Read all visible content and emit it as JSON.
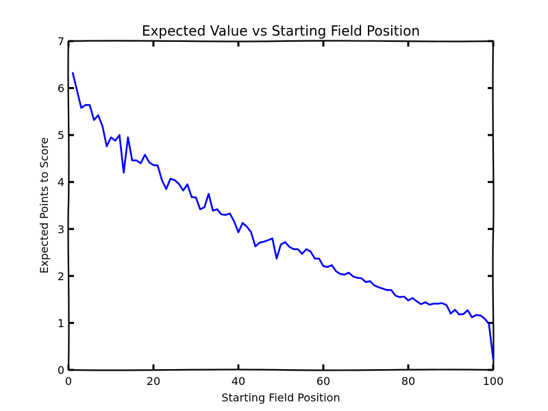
{
  "chart_data": {
    "type": "line",
    "title": "Expected Value vs Starting Field Position",
    "xlabel": "Starting Field Position",
    "ylabel": "Expected Points to Score",
    "xlim": [
      0,
      100
    ],
    "ylim": [
      0,
      7
    ],
    "xticks": [
      0,
      20,
      40,
      60,
      80,
      100
    ],
    "yticks": [
      0,
      1,
      2,
      3,
      4,
      5,
      6,
      7
    ],
    "xtick_labels": [
      "0",
      "20",
      "40",
      "60",
      "80",
      "100"
    ],
    "ytick_labels": [
      "0",
      "1",
      "2",
      "3",
      "4",
      "5",
      "6",
      "7"
    ],
    "grid": false,
    "color": "#0000ff",
    "series": [
      {
        "x": [
          1,
          2,
          3,
          4,
          5,
          6,
          7,
          8,
          9,
          10,
          11,
          12,
          13,
          14,
          15,
          16,
          17,
          18,
          19,
          20,
          21,
          22,
          23,
          24,
          25,
          26,
          27,
          28,
          29,
          30,
          31,
          32,
          33,
          34,
          35,
          36,
          37,
          38,
          39,
          40,
          41,
          42,
          43,
          44,
          45,
          46,
          47,
          48,
          49,
          50,
          51,
          52,
          53,
          54,
          55,
          56,
          57,
          58,
          59,
          60,
          61,
          62,
          63,
          64,
          65,
          66,
          67,
          68,
          69,
          70,
          71,
          72,
          73,
          74,
          75,
          76,
          77,
          78,
          79,
          80,
          81,
          82,
          83,
          84,
          85,
          86,
          87,
          88,
          89,
          90,
          91,
          92,
          93,
          94,
          95,
          96,
          97,
          98,
          99,
          100
        ],
        "y": [
          6.32,
          5.95,
          5.58,
          5.64,
          5.64,
          5.32,
          5.42,
          5.19,
          4.76,
          4.95,
          4.88,
          5.0,
          4.2,
          4.95,
          4.46,
          4.46,
          4.4,
          4.58,
          4.42,
          4.36,
          4.35,
          4.04,
          3.85,
          4.07,
          4.04,
          3.96,
          3.82,
          3.95,
          3.68,
          3.67,
          3.42,
          3.46,
          3.75,
          3.39,
          3.42,
          3.31,
          3.3,
          3.33,
          3.16,
          2.93,
          3.13,
          3.05,
          2.93,
          2.63,
          2.71,
          2.73,
          2.76,
          2.8,
          2.37,
          2.67,
          2.72,
          2.62,
          2.57,
          2.57,
          2.47,
          2.57,
          2.52,
          2.37,
          2.37,
          2.21,
          2.19,
          2.23,
          2.1,
          2.04,
          2.03,
          2.07,
          1.99,
          1.96,
          1.95,
          1.87,
          1.89,
          1.8,
          1.76,
          1.73,
          1.7,
          1.7,
          1.58,
          1.55,
          1.56,
          1.48,
          1.53,
          1.46,
          1.4,
          1.44,
          1.39,
          1.41,
          1.41,
          1.42,
          1.38,
          1.2,
          1.28,
          1.18,
          1.19,
          1.27,
          1.12,
          1.17,
          1.16,
          1.09,
          0.98,
          0.23
        ]
      }
    ]
  }
}
